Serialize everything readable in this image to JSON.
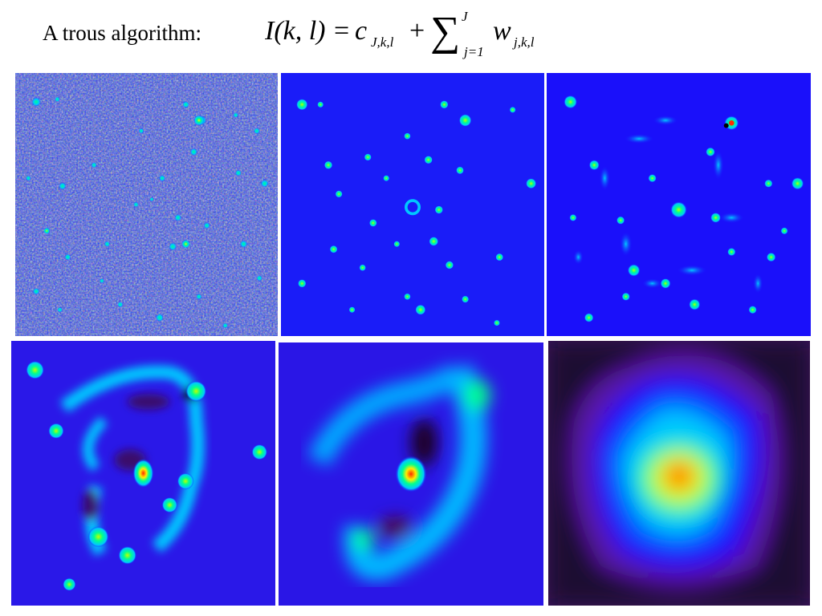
{
  "slide": {
    "heading": "A trous algorithm:",
    "formula": {
      "lhs": "I(k, l)",
      "eq": "=",
      "c_term": "c",
      "c_sub": "J,k,l",
      "plus": "+",
      "sum_symbol": "∑",
      "sum_upper": "J",
      "sum_lower": "j=1",
      "w_term": "w",
      "w_sub": "j,k,l"
    }
  },
  "colormap": [
    "#000000",
    "#5a0a2a",
    "#1a00ff",
    "#0040ff",
    "#00c8ff",
    "#00ff90",
    "#c0ff00",
    "#ffee00",
    "#ff2a00"
  ],
  "panels": [
    {
      "name": "wavelet-scale-1"
    },
    {
      "name": "wavelet-scale-2"
    },
    {
      "name": "wavelet-scale-3"
    },
    {
      "name": "wavelet-scale-4"
    },
    {
      "name": "wavelet-scale-5"
    },
    {
      "name": "smoothed-residual"
    }
  ]
}
